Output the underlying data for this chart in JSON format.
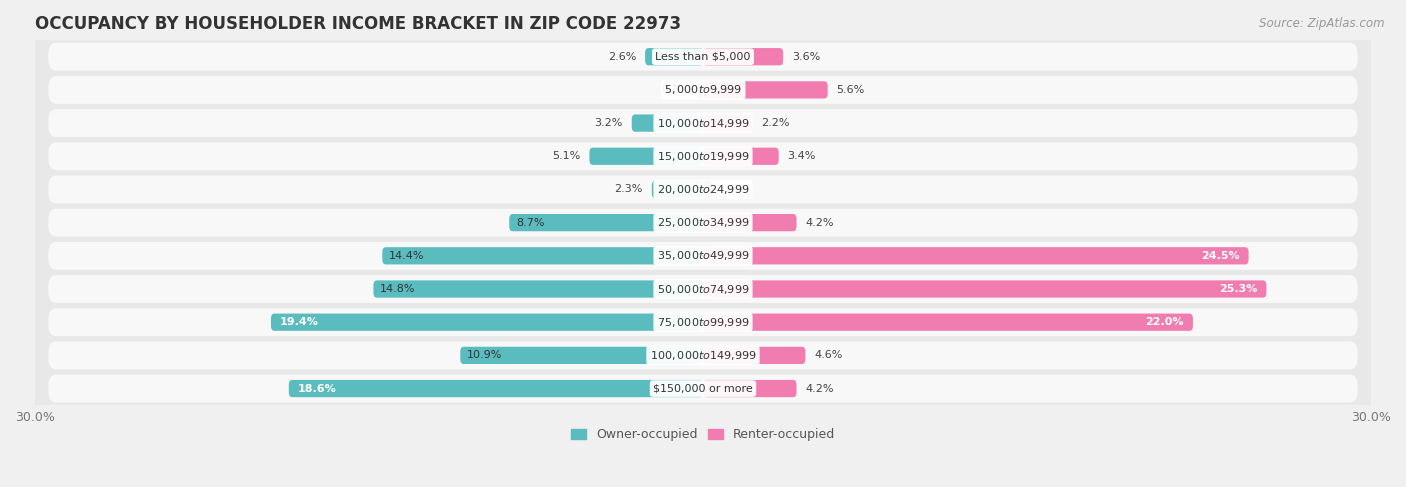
{
  "title": "OCCUPANCY BY HOUSEHOLDER INCOME BRACKET IN ZIP CODE 22973",
  "source": "Source: ZipAtlas.com",
  "categories": [
    "Less than $5,000",
    "$5,000 to $9,999",
    "$10,000 to $14,999",
    "$15,000 to $19,999",
    "$20,000 to $24,999",
    "$25,000 to $34,999",
    "$35,000 to $49,999",
    "$50,000 to $74,999",
    "$75,000 to $99,999",
    "$100,000 to $149,999",
    "$150,000 or more"
  ],
  "owner_values": [
    2.6,
    0.2,
    3.2,
    5.1,
    2.3,
    8.7,
    14.4,
    14.8,
    19.4,
    10.9,
    18.6
  ],
  "renter_values": [
    3.6,
    5.6,
    2.2,
    3.4,
    0.4,
    4.2,
    24.5,
    25.3,
    22.0,
    4.6,
    4.2
  ],
  "owner_color": "#5bbcbf",
  "renter_color": "#f07cb0",
  "owner_color_dark": "#3a9fa3",
  "renter_color_dark": "#e0447a",
  "axis_limit": 30.0,
  "bar_height": 0.52,
  "owner_label": "Owner-occupied",
  "renter_label": "Renter-occupied",
  "title_fontsize": 12,
  "source_fontsize": 8.5,
  "label_fontsize": 8,
  "tick_fontsize": 9,
  "category_fontsize": 8,
  "bg_color": "#f0f0f0",
  "row_bg": "#e8e8e8",
  "card_bg": "#f8f8f8"
}
